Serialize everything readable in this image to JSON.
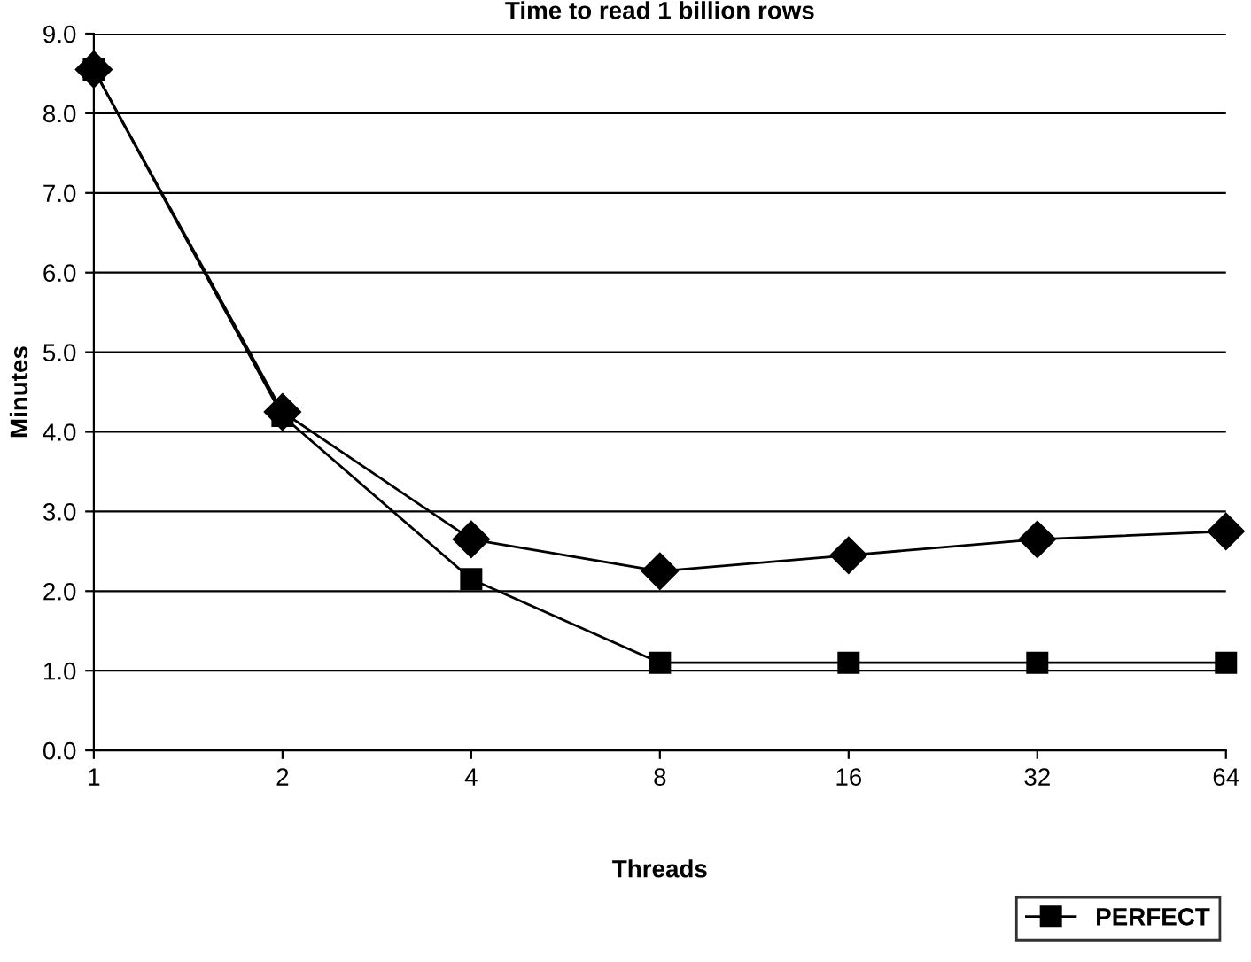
{
  "chart_data": {
    "type": "line",
    "title": "Time to read 1 billion rows",
    "xlabel": "Threads",
    "ylabel": "Minutes",
    "categories": [
      "1",
      "2",
      "4",
      "8",
      "16",
      "32",
      "64"
    ],
    "series": [
      {
        "color": "#000000",
        "marker": "diamond",
        "values": [
          8.55,
          4.25,
          2.65,
          2.25,
          2.45,
          2.65,
          2.75
        ]
      },
      {
        "name": "PERFECT",
        "color": "#000000",
        "marker": "square",
        "values": [
          8.55,
          4.2,
          2.15,
          1.1,
          1.1,
          1.1,
          1.1
        ]
      }
    ],
    "ylim": [
      0,
      9
    ],
    "yticks": [
      {
        "value": 0,
        "label": "0.0"
      },
      {
        "value": 1,
        "label": "1.0"
      },
      {
        "value": 2,
        "label": "2.0"
      },
      {
        "value": 3,
        "label": "3.0"
      },
      {
        "value": 4,
        "label": "4.0"
      },
      {
        "value": 5,
        "label": "5.0"
      },
      {
        "value": 6,
        "label": "6.0"
      },
      {
        "value": 7,
        "label": "7.0"
      },
      {
        "value": 8,
        "label": "8.0"
      },
      {
        "value": 9,
        "label": "9.0"
      }
    ],
    "grid": "y",
    "legend": "bottom right",
    "line_style": "solid"
  }
}
